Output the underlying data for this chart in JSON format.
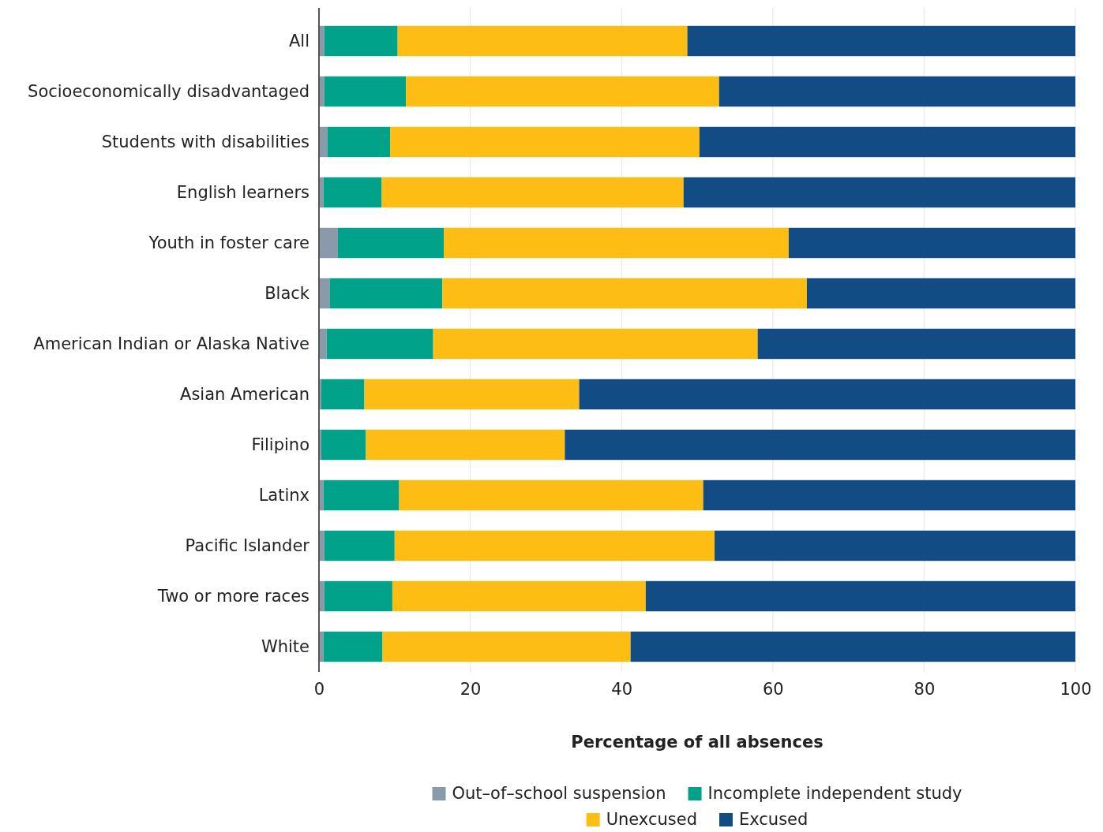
{
  "chart_data": {
    "type": "bar",
    "orientation": "horizontal",
    "stacked": true,
    "xlabel": "Percentage of all absences",
    "categories": [
      "All",
      "Socioeconomically disadvantaged",
      "Students with disabilities",
      "English learners",
      "Youth in foster care",
      "Black",
      "American Indian or Alaska Native",
      "Asian American",
      "Filipino",
      "Latinx",
      "Pacific Islander",
      "Two or more races",
      "White"
    ],
    "series": [
      {
        "name": "Out–of–school suspension",
        "color": "#8a9aaa",
        "values": [
          0.7,
          0.7,
          1.1,
          0.6,
          2.5,
          1.4,
          1.0,
          0.3,
          0.3,
          0.6,
          0.7,
          0.7,
          0.6
        ]
      },
      {
        "name": "Incomplete independent study",
        "color": "#00a38a",
        "values": [
          9.7,
          10.8,
          8.3,
          7.7,
          14.0,
          14.9,
          14.1,
          5.7,
          5.9,
          10.0,
          9.3,
          9.0,
          7.8
        ]
      },
      {
        "name": "Unexcused",
        "color": "#fdbd12",
        "values": [
          38.3,
          41.4,
          40.9,
          39.9,
          45.6,
          48.2,
          42.9,
          28.4,
          26.3,
          40.2,
          42.3,
          33.5,
          32.8
        ]
      },
      {
        "name": "Excused",
        "color": "#124c85",
        "values": [
          51.3,
          47.1,
          49.7,
          51.8,
          37.9,
          35.5,
          42.0,
          65.6,
          67.5,
          49.2,
          47.7,
          56.8,
          58.8
        ]
      }
    ],
    "xlim": [
      0,
      100
    ],
    "xticks": [
      0,
      20,
      40,
      60,
      80,
      100
    ],
    "grid": "x",
    "legend": "bottom"
  }
}
